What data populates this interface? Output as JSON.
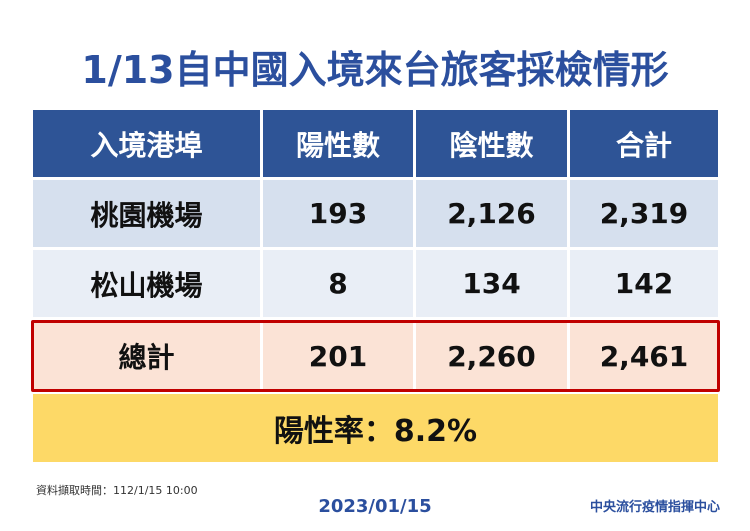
{
  "header": {
    "title": "1/13自中國入境來台旅客採檢情形"
  },
  "table": {
    "columns": [
      "入境港埠",
      "陽性數",
      "陰性數",
      "合計"
    ],
    "rows": [
      [
        "桃園機場",
        "193",
        "2,126",
        "2,319"
      ],
      [
        "松山機場",
        "8",
        "134",
        "142"
      ]
    ],
    "total": [
      "總計",
      "201",
      "2,260",
      "2,461"
    ],
    "positive_rate": "陽性率：8.2%"
  },
  "footer": {
    "note": "資料擷取時間：112/1/15 10:00",
    "date": "2023/01/15",
    "source": "中央流行疫情指揮中心"
  }
}
